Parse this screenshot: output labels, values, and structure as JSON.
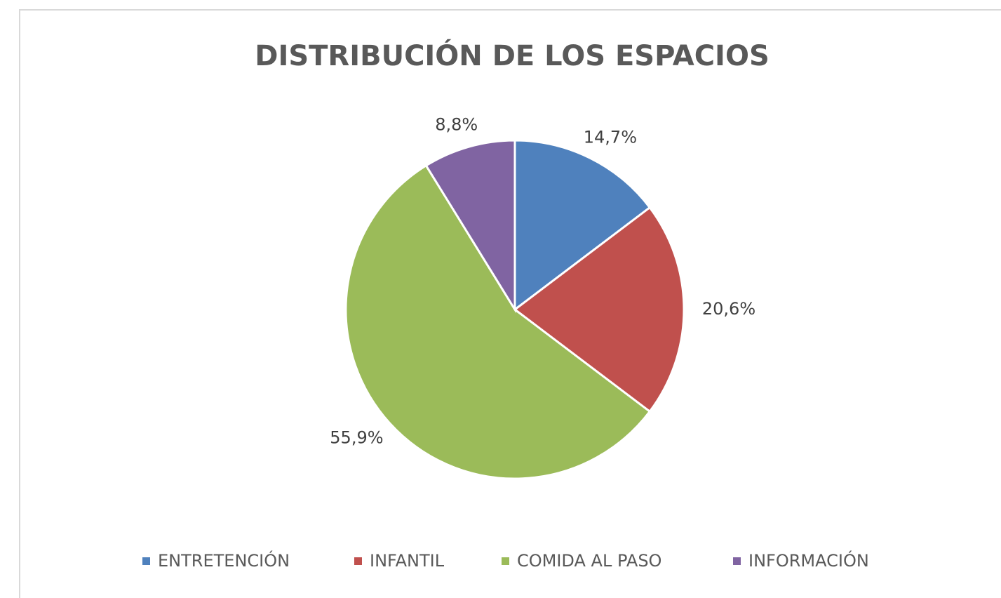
{
  "chart_data": {
    "type": "pie",
    "title": "DISTRIBUCIÓN DE LOS ESPACIOS",
    "categories": [
      "ENTRETENCIÓN",
      "INFANTIL",
      "COMIDA AL PASO",
      "INFORMACIÓN"
    ],
    "values": [
      14.7,
      20.6,
      55.9,
      8.8
    ],
    "value_labels": [
      "14,7%",
      "20,6%",
      "55,9%",
      "8,8%"
    ],
    "colors": [
      "#4f81bd",
      "#c0504d",
      "#9bbb59",
      "#8064a2"
    ],
    "legend": "bottom"
  }
}
